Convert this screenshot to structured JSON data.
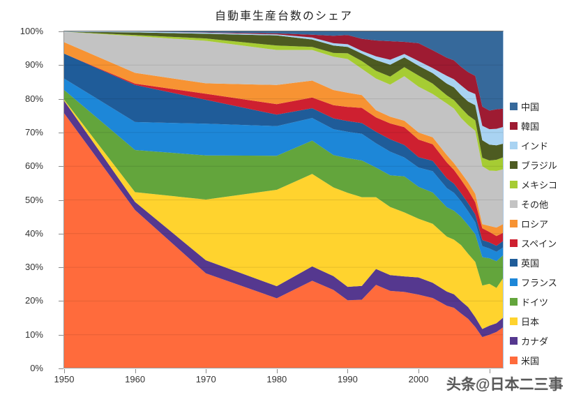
{
  "title": "自動車生産台数のシェア",
  "watermark": "头条@日本二三事",
  "chart_data": {
    "type": "area",
    "stacking": "percent",
    "title": "自動車生産台数のシェア",
    "xlabel": "",
    "ylabel": "",
    "xlim": [
      1950,
      2012
    ],
    "ylim": [
      0,
      100
    ],
    "grid": true,
    "legend_position": "right",
    "colors": {
      "axis": "#8a8a8a",
      "gridline_overlay": "rgba(0,0,0,0.10)",
      "plot_right_border": "#aac6e2",
      "background": "#ffffff"
    },
    "x": [
      1950,
      1960,
      1970,
      1980,
      1985,
      1988,
      1990,
      1992,
      1994,
      1996,
      1998,
      2000,
      2002,
      2004,
      2005,
      2006,
      2007,
      2008,
      2009,
      2010,
      2011,
      2012
    ],
    "y_ticks": [
      "0%",
      "10%",
      "20%",
      "30%",
      "40%",
      "50%",
      "60%",
      "70%",
      "80%",
      "90%",
      "100%"
    ],
    "x_ticks": [
      {
        "year": 1950,
        "label": "1950"
      },
      {
        "year": 1960,
        "label": "1960"
      },
      {
        "year": 1970,
        "label": "1970"
      },
      {
        "year": 1980,
        "label": "1980"
      },
      {
        "year": 1990,
        "label": "1990"
      },
      {
        "year": 2000,
        "label": "2000"
      },
      {
        "year": 2010,
        "label": ""
      }
    ],
    "series_note": "series listed bottom-of-stack first; values are percent of world auto production and sum to 100 per year",
    "series": [
      {
        "key": "us",
        "name": "米国",
        "color": "#FF6B3C",
        "values": [
          75.7,
          47.0,
          28.2,
          20.8,
          26.0,
          23.3,
          20.2,
          20.4,
          24.8,
          23.0,
          22.7,
          21.9,
          20.9,
          18.6,
          18.0,
          16.3,
          14.7,
          12.3,
          9.3,
          10.0,
          10.8,
          12.3
        ]
      },
      {
        "key": "canada",
        "name": "カナダ",
        "color": "#55388F",
        "values": [
          3.7,
          2.4,
          3.9,
          3.6,
          4.3,
          4.1,
          4.0,
          4.1,
          4.7,
          4.7,
          4.6,
          5.1,
          4.5,
          4.2,
          4.0,
          3.7,
          3.5,
          2.9,
          2.4,
          2.7,
          2.6,
          2.9
        ]
      },
      {
        "key": "japan",
        "name": "日本",
        "color": "#FFD32E",
        "values": [
          0.3,
          2.9,
          18.0,
          28.6,
          27.4,
          26.3,
          27.9,
          26.3,
          21.3,
          20.2,
          19.0,
          17.4,
          17.5,
          16.3,
          16.2,
          16.6,
          15.8,
          16.4,
          12.9,
          12.4,
          10.5,
          11.8
        ]
      },
      {
        "key": "germany",
        "name": "ドイツ",
        "color": "#63A53C",
        "values": [
          2.9,
          12.5,
          13.1,
          10.1,
          9.9,
          9.6,
          10.3,
          10.9,
          8.8,
          9.4,
          10.7,
          9.5,
          9.3,
          8.7,
          8.6,
          8.4,
          8.5,
          8.2,
          8.4,
          7.6,
          7.9,
          6.7
        ]
      },
      {
        "key": "france",
        "name": "フランス",
        "color": "#1D87D8",
        "values": [
          3.4,
          8.3,
          9.4,
          8.8,
          6.7,
          7.7,
          7.8,
          7.9,
          7.2,
          7.0,
          5.6,
          5.7,
          6.3,
          5.7,
          5.3,
          4.6,
          4.1,
          3.6,
          3.3,
          2.9,
          2.8,
          2.3
        ]
      },
      {
        "key": "uk",
        "name": "英国",
        "color": "#1F5C99",
        "values": [
          7.4,
          11.0,
          7.1,
          3.4,
          2.9,
          3.2,
          3.2,
          3.2,
          3.4,
          3.7,
          3.7,
          3.1,
          3.1,
          2.9,
          2.7,
          2.4,
          2.4,
          2.3,
          1.8,
          1.8,
          1.8,
          1.9
        ]
      },
      {
        "key": "spain",
        "name": "スペイン",
        "color": "#CE2030",
        "values": [
          0.0,
          0.4,
          1.8,
          3.1,
          3.2,
          3.9,
          4.2,
          4.5,
          4.3,
          4.7,
          5.3,
          5.2,
          4.9,
          4.7,
          4.1,
          4.0,
          3.9,
          3.6,
          3.5,
          3.1,
          2.9,
          2.4
        ]
      },
      {
        "key": "russia",
        "name": "ロシア",
        "color": "#F79333",
        "values": [
          3.4,
          3.2,
          3.1,
          5.7,
          5.0,
          4.5,
          4.2,
          3.8,
          2.1,
          2.0,
          1.9,
          2.1,
          2.1,
          2.2,
          2.0,
          2.1,
          2.3,
          2.5,
          1.2,
          1.8,
          2.5,
          2.6
        ]
      },
      {
        "key": "others",
        "name": "その他",
        "color": "#C3C3C3",
        "values": [
          3.1,
          10.9,
          12.6,
          10.4,
          9.1,
          9.9,
          10.0,
          7.8,
          9.4,
          9.5,
          13.2,
          13.6,
          12.8,
          15.3,
          16.2,
          16.2,
          17.0,
          18.7,
          17.2,
          16.4,
          16.8,
          16.2
        ]
      },
      {
        "key": "mexico",
        "name": "メキシコ",
        "color": "#A6CC33",
        "values": [
          0.0,
          0.3,
          0.7,
          1.3,
          0.9,
          1.1,
          1.7,
          2.3,
          2.3,
          2.4,
          2.7,
          3.3,
          3.1,
          2.4,
          2.5,
          3.0,
          2.9,
          3.1,
          2.5,
          3.0,
          3.3,
          3.6
        ]
      },
      {
        "key": "brazil",
        "name": "ブラジル",
        "color": "#4D5B21",
        "values": [
          0.0,
          0.8,
          1.4,
          3.0,
          2.2,
          2.2,
          1.9,
          2.2,
          3.2,
          3.5,
          2.9,
          2.9,
          3.1,
          3.5,
          3.8,
          3.8,
          4.1,
          4.5,
          5.2,
          4.7,
          4.3,
          4.0
        ]
      },
      {
        "key": "india",
        "name": "インド",
        "color": "#A9D3F2",
        "values": [
          0.1,
          0.3,
          0.3,
          0.3,
          0.6,
          0.7,
          0.8,
          0.8,
          1.1,
          1.5,
          1.0,
          1.4,
          1.5,
          2.3,
          2.4,
          2.9,
          3.1,
          3.3,
          4.3,
          4.6,
          4.9,
          5.0
        ]
      },
      {
        "key": "korea",
        "name": "韓国",
        "color": "#9E1B32",
        "values": [
          0.0,
          0.0,
          0.1,
          0.3,
          0.8,
          2.2,
          2.7,
          3.6,
          4.7,
          5.5,
          3.6,
          5.3,
          5.3,
          5.4,
          5.6,
          5.5,
          5.6,
          5.4,
          5.7,
          5.5,
          5.8,
          5.4
        ]
      },
      {
        "key": "china",
        "name": "中国",
        "color": "#36699B",
        "values": [
          0.0,
          0.0,
          0.3,
          0.6,
          1.0,
          1.3,
          1.1,
          2.2,
          2.7,
          2.9,
          3.1,
          3.5,
          5.6,
          7.8,
          8.6,
          10.5,
          12.1,
          13.2,
          22.3,
          23.5,
          23.1,
          22.9
        ]
      }
    ]
  }
}
